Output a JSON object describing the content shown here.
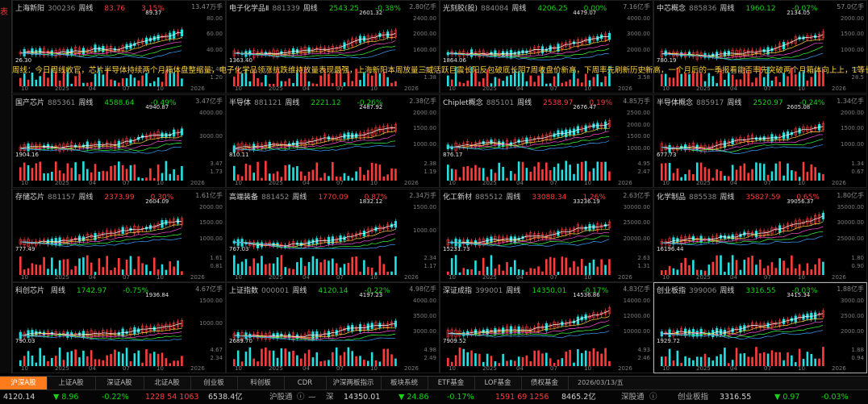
{
  "left_strip_label": "表",
  "note_text": "周线：今日周线收官，芯片半导体持续两个月箱体盘整缩量，电子化学品领涨抗跌维持放量表现最强，上海新阳本周放量三威活跃巨震长阳反包破底长阴7周收盘价新高，下周率先刷新历史新高，一个月后的一季报看能否率先突破两个月箱体向上上，1等长。",
  "panels": [
    {
      "name": "上海新阳",
      "code": "300236",
      "period": "周线",
      "price": "83.76",
      "change": "3.15%",
      "dir": "up",
      "high_label": "89.37",
      "low_label": "26.30",
      "vol": "13.47万手",
      "ticks": [
        "80.00",
        "60.00",
        "40.00"
      ],
      "vticks": [
        "2.40",
        "1.20"
      ],
      "x": [
        "10",
        "2025",
        "04",
        "07",
        "10",
        "2026"
      ]
    },
    {
      "name": "电子化学品Ⅱ",
      "code": "881339",
      "period": "周线",
      "price": "2543.25",
      "change": "-0.38%",
      "dir": "dn",
      "high_label": "2601.32",
      "low_label": "1363.40",
      "vol": "2.80亿手",
      "ticks": [
        "2400.00",
        "2000.00",
        "1600.00"
      ],
      "vticks": [
        "2.76",
        "1.38"
      ],
      "x": [
        "10",
        "2025",
        "04",
        "07",
        "10",
        "2026"
      ]
    },
    {
      "name": "光刻胶(股)",
      "code": "884084",
      "period": "周线",
      "price": "4206.25",
      "change": "0.00%",
      "dir": "flat",
      "high_label": "4479.07",
      "low_label": "1864.06",
      "vol": "7.16亿手",
      "ticks": [
        "4000.00",
        "3000.00",
        "2000.00"
      ],
      "vticks": [
        "7.16",
        "3.58"
      ],
      "x": [
        "10",
        "2025",
        "04",
        "07",
        "10",
        "2026"
      ]
    },
    {
      "name": "中芯概念",
      "code": "885836",
      "period": "周线",
      "price": "1960.12",
      "change": "-0.07%",
      "dir": "dn",
      "high_label": "2134.05",
      "low_label": "780.19",
      "vol": "57.0亿手",
      "ticks": [
        "2000.00",
        "1500.00",
        "1000.00"
      ],
      "vticks": [
        "57.0",
        "28.5"
      ],
      "x": [
        "10",
        "2025",
        "04",
        "07",
        "10",
        "2026"
      ]
    },
    {
      "name": "国产芯片",
      "code": "885361",
      "period": "周线",
      "price": "4588.64",
      "change": "-0.49%",
      "dir": "dn",
      "high_label": "4940.87",
      "low_label": "1904.16",
      "vol": "3.47亿手",
      "ticks": [
        "4000.00",
        "3000.00"
      ],
      "vticks": [
        "3.47",
        "1.73"
      ],
      "x": [
        "10",
        "2025",
        "04",
        "07",
        "10",
        "2026"
      ]
    },
    {
      "name": "半导体",
      "code": "881121",
      "period": "周线",
      "price": "2221.12",
      "change": "-0.26%",
      "dir": "dn",
      "high_label": "2487.92",
      "low_label": "810.11",
      "vol": "2.38亿手",
      "ticks": [
        "2000.00",
        "1500.00",
        "1000.00"
      ],
      "vticks": [
        "2.38",
        "1.19"
      ],
      "x": [
        "10",
        "2025",
        "04",
        "07",
        "10",
        "2026"
      ]
    },
    {
      "name": "Chiplet概念",
      "code": "885101",
      "period": "周线",
      "price": "2538.97",
      "change": "0.19%",
      "dir": "up",
      "high_label": "2676.47",
      "low_label": "876.17",
      "vol": "4.85万手",
      "ticks": [
        "2500.00",
        "2000.00",
        "1500.00",
        "1000.00"
      ],
      "vticks": [
        "4.95",
        "2.47"
      ],
      "x": [
        "10",
        "2025",
        "04",
        "07",
        "10",
        "2026"
      ]
    },
    {
      "name": "半导体概念",
      "code": "885917",
      "period": "周线",
      "price": "2520.97",
      "change": "-0.24%",
      "dir": "dn",
      "high_label": "2605.08",
      "low_label": "677.73",
      "vol": "1.34亿手",
      "ticks": [
        "2000.00",
        "1500.00",
        "1000.00"
      ],
      "vticks": [
        "1.34",
        "0.67"
      ],
      "x": [
        "10",
        "2025",
        "04",
        "07",
        "10",
        "2026"
      ]
    },
    {
      "name": "存储芯片",
      "code": "881157",
      "period": "周线",
      "price": "2373.99",
      "change": "0.30%",
      "dir": "up",
      "high_label": "2604.09",
      "low_label": "777.49",
      "vol": "1.61亿手",
      "ticks": [
        "2000.00",
        "1500.00",
        "1000.00"
      ],
      "vticks": [
        "1.61",
        "0.81"
      ],
      "x": [
        "10",
        "2025",
        "04",
        "07",
        "10",
        "2026"
      ]
    },
    {
      "name": "高端装备",
      "code": "881452",
      "period": "周线",
      "price": "1770.09",
      "change": "0.87%",
      "dir": "up",
      "high_label": "1832.12",
      "low_label": "767.03",
      "vol": "2.34万手",
      "ticks": [
        "1500.00",
        "1000.00"
      ],
      "vticks": [
        "2.34",
        "1.17"
      ],
      "x": [
        "10",
        "2025",
        "04",
        "07",
        "10",
        "2026"
      ]
    },
    {
      "name": "化工新材",
      "code": "885512",
      "period": "周线",
      "price": "33088.34",
      "change": "1.26%",
      "dir": "up",
      "high_label": "33236.19",
      "low_label": "15231.73",
      "vol": "2.63亿手",
      "ticks": [
        "30000.00",
        "25000.00",
        "20000.00"
      ],
      "vticks": [
        "2.63",
        "1.31"
      ],
      "x": [
        "10",
        "2025",
        "04",
        "07",
        "10",
        "2026"
      ]
    },
    {
      "name": "化学制品",
      "code": "885538",
      "period": "周线",
      "price": "35827.59",
      "change": "0.65%",
      "dir": "up",
      "high_label": "39056.37",
      "low_label": "16196.44",
      "vol": "1.80亿手",
      "ticks": [
        "35000.00",
        "30000.00",
        "25000.00"
      ],
      "vticks": [
        "1.80",
        "0.90"
      ],
      "x": [
        "10",
        "2025",
        "04",
        "07",
        "10",
        "2026"
      ]
    },
    {
      "name": "科创芯片",
      "code": "",
      "period": "周线",
      "price": "1742.97",
      "change": "-0.75%",
      "dir": "dn",
      "high_label": "1936.84",
      "low_label": "790.03",
      "vol": "4.67亿手",
      "ticks": [
        "1500.00",
        "1000.00"
      ],
      "vticks": [
        "4.67",
        "2.34"
      ],
      "x": [
        "10",
        "2025",
        "04",
        "07",
        "10",
        "2026"
      ]
    },
    {
      "name": "上证指数",
      "code": "000001",
      "period": "周线",
      "price": "4120.14",
      "change": "-0.22%",
      "dir": "dn",
      "high_label": "4197.23",
      "low_label": "2689.70",
      "vol": "4.98亿手",
      "ticks": [
        "4000.00",
        "3500.00",
        "3000.00"
      ],
      "vticks": [
        "4.98",
        "2.49"
      ],
      "x": [
        "10",
        "2025",
        "04",
        "07",
        "10",
        "2026"
      ]
    },
    {
      "name": "深证成指",
      "code": "399001",
      "period": "周线",
      "price": "14350.01",
      "change": "-0.17%",
      "dir": "dn",
      "high_label": "14536.86",
      "low_label": "7909.52",
      "vol": "4.83亿手",
      "ticks": [
        "14000.00",
        "12000.00",
        "10000.00"
      ],
      "vticks": [
        "4.93",
        "2.46"
      ],
      "x": [
        "10",
        "2025",
        "04",
        "07",
        "10",
        "2026"
      ]
    },
    {
      "name": "创业板指",
      "code": "399006",
      "period": "周线",
      "price": "3316.55",
      "change": "-0.03%",
      "dir": "dn",
      "high_label": "3415.34",
      "low_label": "1929.72",
      "vol": "1.88亿手",
      "ticks": [
        "3000.00",
        "2500.00",
        "2000.00"
      ],
      "vticks": [
        "1.88",
        "0.94"
      ],
      "x": [
        "10",
        "2025",
        "04",
        "07",
        "10",
        "2026"
      ]
    }
  ],
  "tabs": [
    "沪深A股",
    "上证A股",
    "深证A股",
    "北证A股",
    "创业板",
    "科创板",
    "CDR",
    "沪深两板指示",
    "板块系统",
    "ETF基金",
    "LOF基金",
    "债权基金"
  ],
  "tab_date": "2026/03/13/五",
  "status": {
    "sh_index": "4120.14",
    "sh_pts": "▼ 8.96",
    "sh_pct": "-0.22%",
    "sh_counts": "1228 54 1063",
    "sh_amount": "6538.4亿",
    "hgt_label": "沪股通",
    "hgt_value": "—",
    "sz_label": "深",
    "sz_index": "14350.01",
    "sz_pts": "▼ 24.86",
    "sz_pct": "-0.17%",
    "sz_counts": "1591 69 1256",
    "sz_amount": "8465.2亿",
    "sgt_label": "深股通",
    "cyb_label": "创业板指",
    "cyb_index": "3316.55",
    "cyb_pts": "▼ 0.97",
    "cyb_pct": "-0.03%"
  },
  "colors": {
    "up": "#ff3b3b",
    "down": "#19d219",
    "accent": "#ff7b1c",
    "note": "#ffd23f"
  }
}
